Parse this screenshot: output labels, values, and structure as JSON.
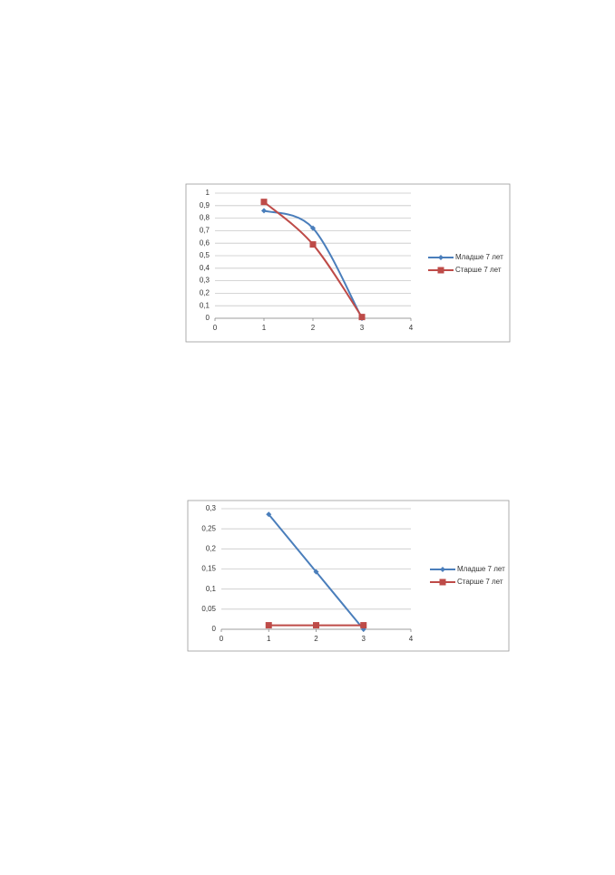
{
  "chart_data": [
    {
      "type": "line",
      "smooth": true,
      "x": [
        1,
        2,
        3
      ],
      "series": [
        {
          "name": "Младше 7 лет",
          "color": "#4a7ebb",
          "marker": "diamond",
          "values": [
            0.86,
            0.72,
            0.0
          ]
        },
        {
          "name": "Старше 7 лет",
          "color": "#be4b48",
          "marker": "square",
          "values": [
            0.93,
            0.59,
            0.01
          ]
        }
      ],
      "xlim": [
        0,
        4
      ],
      "xticks": [
        0,
        1,
        2,
        3,
        4
      ],
      "ylim": [
        0,
        1
      ],
      "yticks": [
        0,
        {
          "value": 0.1,
          "label": "0,1"
        },
        {
          "value": 0.2,
          "label": "0,2"
        },
        {
          "value": 0.3,
          "label": "0,3"
        },
        {
          "value": 0.4,
          "label": "0,4"
        },
        {
          "value": 0.5,
          "label": "0,5"
        },
        {
          "value": 0.6,
          "label": "0,6"
        },
        {
          "value": 0.7,
          "label": "0,7"
        },
        {
          "value": 0.8,
          "label": "0,8"
        },
        {
          "value": 0.9,
          "label": "0,9"
        },
        1
      ],
      "grid": true,
      "legend": "right"
    },
    {
      "type": "line",
      "smooth": false,
      "x": [
        1,
        2,
        3
      ],
      "series": [
        {
          "name": "Младше 7 лет",
          "color": "#4a7ebb",
          "marker": "diamond",
          "values": [
            0.286,
            0.143,
            0.0
          ]
        },
        {
          "name": "Старше 7 лет",
          "color": "#be4b48",
          "marker": "square",
          "values": [
            0.01,
            0.01,
            0.01
          ]
        }
      ],
      "xlim": [
        0,
        4
      ],
      "xticks": [
        0,
        1,
        2,
        3,
        4
      ],
      "ylim": [
        0,
        0.3
      ],
      "yticks": [
        0,
        {
          "value": 0.05,
          "label": "0,05"
        },
        {
          "value": 0.1,
          "label": "0,1"
        },
        {
          "value": 0.15,
          "label": "0,15"
        },
        {
          "value": 0.2,
          "label": "0,2"
        },
        {
          "value": 0.25,
          "label": "0,25"
        },
        {
          "value": 0.3,
          "label": "0,3"
        }
      ],
      "grid": true,
      "legend": "right"
    }
  ]
}
